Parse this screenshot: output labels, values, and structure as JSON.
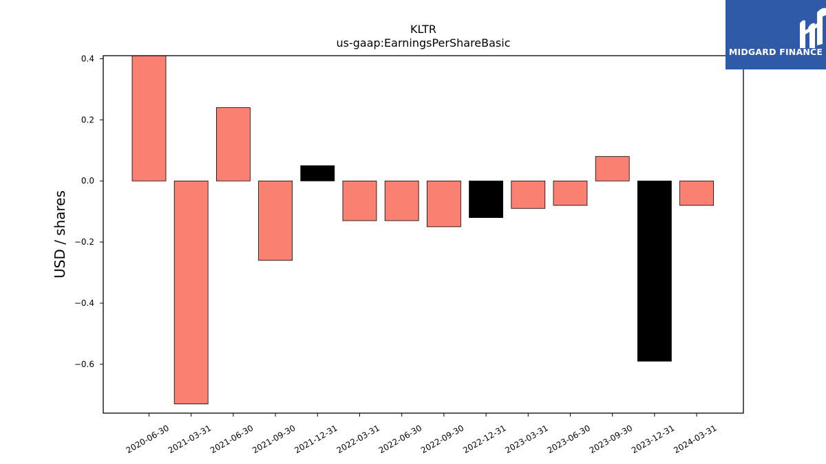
{
  "chart_data": {
    "type": "bar",
    "title": "KLTR",
    "subtitle": "us-gaap:EarningsPerShareBasic",
    "ylabel": "USD / shares",
    "xlabel": "",
    "categories": [
      "2020-06-30",
      "2021-03-31",
      "2021-06-30",
      "2021-09-30",
      "2021-12-31",
      "2022-03-31",
      "2022-06-30",
      "2022-09-30",
      "2022-12-31",
      "2023-03-31",
      "2023-06-30",
      "2023-09-30",
      "2023-12-31",
      "2024-03-31"
    ],
    "values": [
      0.41,
      -0.73,
      0.24,
      -0.26,
      0.05,
      -0.13,
      -0.13,
      -0.15,
      -0.12,
      -0.09,
      -0.08,
      0.08,
      -0.59,
      -0.08
    ],
    "highlight": [
      false,
      false,
      false,
      false,
      true,
      false,
      false,
      false,
      true,
      false,
      false,
      false,
      true,
      false
    ],
    "ylim": [
      -0.76,
      0.41
    ],
    "yticks": [
      0.4,
      0.2,
      0.0,
      -0.2,
      -0.4,
      -0.6
    ],
    "ytick_labels": [
      "0.4",
      "0.2",
      "0.0",
      "−0.2",
      "−0.4",
      "−0.6"
    ],
    "colors": {
      "bar": "#fa8072",
      "highlight": "#000000",
      "edge": "#000000"
    },
    "grid": false
  },
  "logo": {
    "text": "MIDGARD FINANCE",
    "background": "#2f5aa8",
    "color": "#ffffff"
  }
}
